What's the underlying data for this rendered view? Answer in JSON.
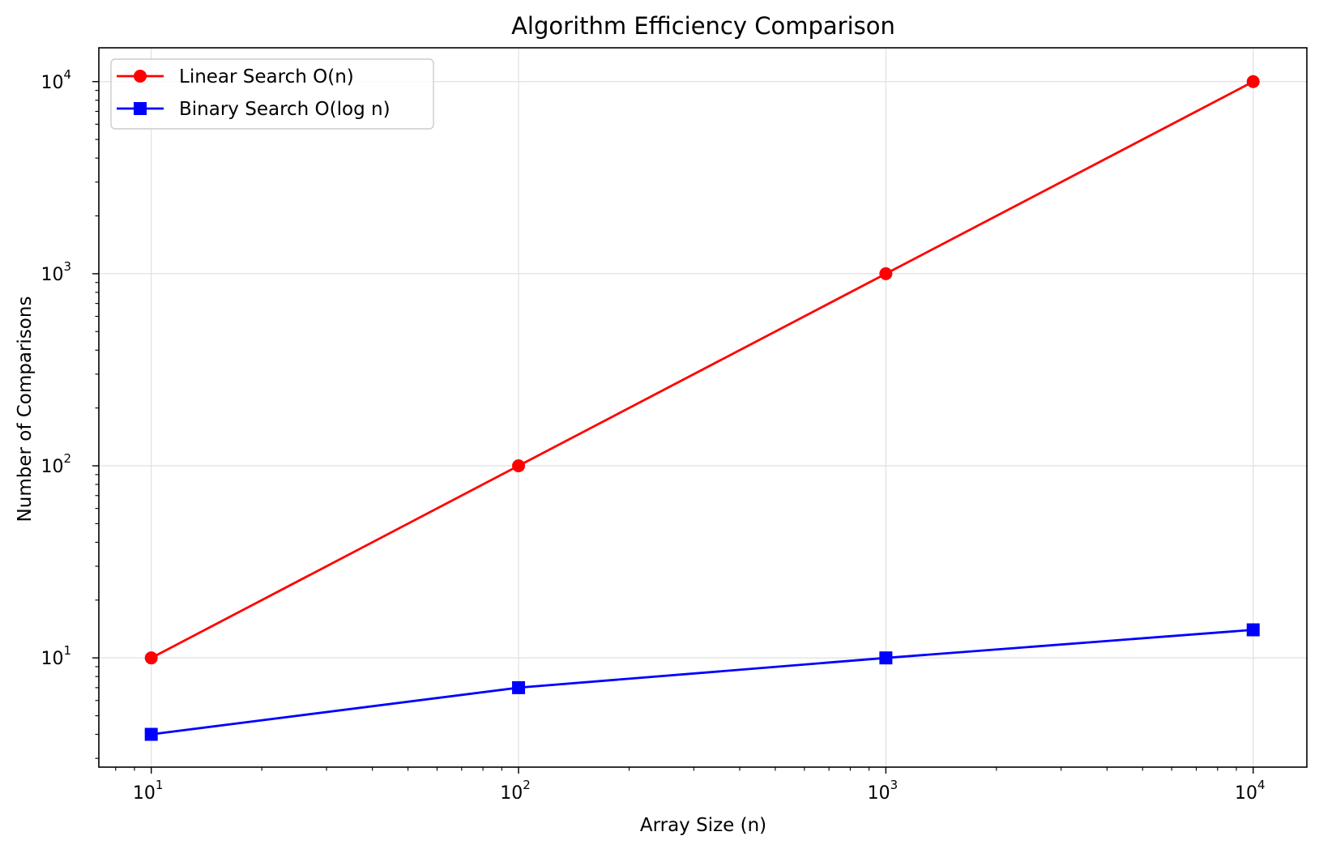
{
  "chart_data": {
    "type": "line",
    "title": "Algorithm Efficiency Comparison",
    "xlabel": "Array Size (n)",
    "ylabel": "Number of Comparisons",
    "x_scale": "log",
    "y_scale": "log",
    "xlim": [
      7.2,
      14000
    ],
    "ylim": [
      2.7,
      15000
    ],
    "grid": true,
    "legend_position": "top-left",
    "x": [
      10,
      100,
      1000,
      10000
    ],
    "x_ticks": [
      {
        "base": "10",
        "exp": "1",
        "value": 10
      },
      {
        "base": "10",
        "exp": "2",
        "value": 100
      },
      {
        "base": "10",
        "exp": "3",
        "value": 1000
      },
      {
        "base": "10",
        "exp": "4",
        "value": 10000
      }
    ],
    "y_ticks": [
      {
        "base": "10",
        "exp": "1",
        "value": 10
      },
      {
        "base": "10",
        "exp": "2",
        "value": 100
      },
      {
        "base": "10",
        "exp": "3",
        "value": 1000
      },
      {
        "base": "10",
        "exp": "4",
        "value": 10000
      }
    ],
    "series": [
      {
        "name": "Linear Search O(n)",
        "color": "#ff0000",
        "marker": "circle",
        "values": [
          10,
          100,
          1000,
          10000
        ]
      },
      {
        "name": "Binary Search O(log n)",
        "color": "#0000ff",
        "marker": "square",
        "values": [
          4,
          7,
          10,
          14
        ]
      }
    ]
  }
}
